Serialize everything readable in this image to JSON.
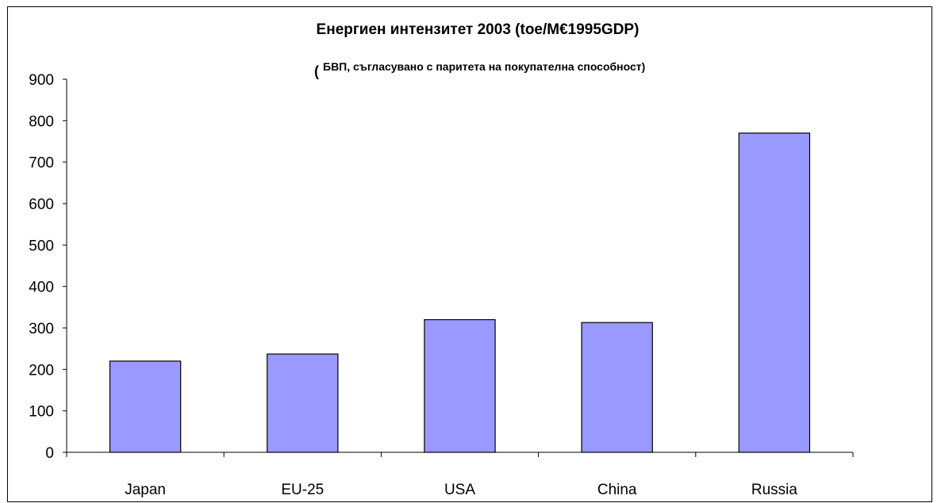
{
  "chart_data": {
    "type": "bar",
    "title": "Енергиен интензитет 2003 (toe/M€1995GDP)",
    "subtitle_open_paren": "(",
    "subtitle": "БВП, съгласувано с паритета на покупателна способност)",
    "categories": [
      "Japan",
      "EU-25",
      "USA",
      "China",
      "Russia"
    ],
    "values": [
      220,
      237,
      320,
      313,
      770
    ],
    "ylim": [
      0,
      900
    ],
    "yticks": [
      0,
      100,
      200,
      300,
      400,
      500,
      600,
      700,
      800,
      900
    ],
    "xlabel": "",
    "ylabel": "",
    "grid": false,
    "legend": "none",
    "bar_color": "#9999ff",
    "bar_edge_color": "#000000"
  }
}
